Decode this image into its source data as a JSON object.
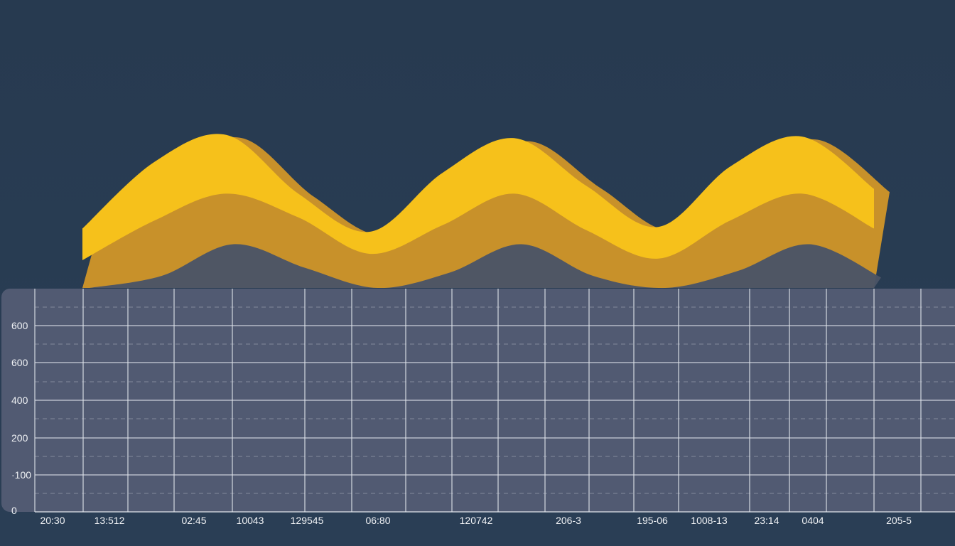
{
  "colors": {
    "background": "#273a50",
    "front_wave": "#f6c11b",
    "back_wave": "#c8912a",
    "mountain": "#4a5466",
    "panel": "#515a72",
    "grid": "#dfe3ea"
  },
  "chart_data": {
    "type": "area",
    "title": "",
    "xlabel": "",
    "ylabel": "",
    "y_tick_labels": [
      "600",
      "600",
      "400",
      "200",
      "·100",
      "0"
    ],
    "x_tick_labels": [
      "20:30",
      "13:512",
      "02:45",
      "10043",
      "129545",
      "06:80",
      "120742",
      "206-3",
      "195-06",
      "1008-13",
      "23:14",
      "0404",
      "205-5"
    ],
    "grid": true,
    "series": [
      {
        "values": [
          0.33,
          0.75,
          0.92,
          0.55,
          0.31,
          0.68,
          0.9,
          0.6,
          0.34,
          0.72,
          0.91,
          0.58
        ]
      },
      {
        "values": [
          0.13,
          0.38,
          0.55,
          0.4,
          0.17,
          0.35,
          0.55,
          0.32,
          0.14,
          0.38,
          0.55,
          0.33
        ]
      },
      {
        "values": [
          0.08,
          0.3,
          0.5,
          0.35,
          0.12,
          0.32,
          0.5,
          0.3,
          0.1,
          0.33,
          0.5,
          0.29
        ]
      }
    ]
  }
}
